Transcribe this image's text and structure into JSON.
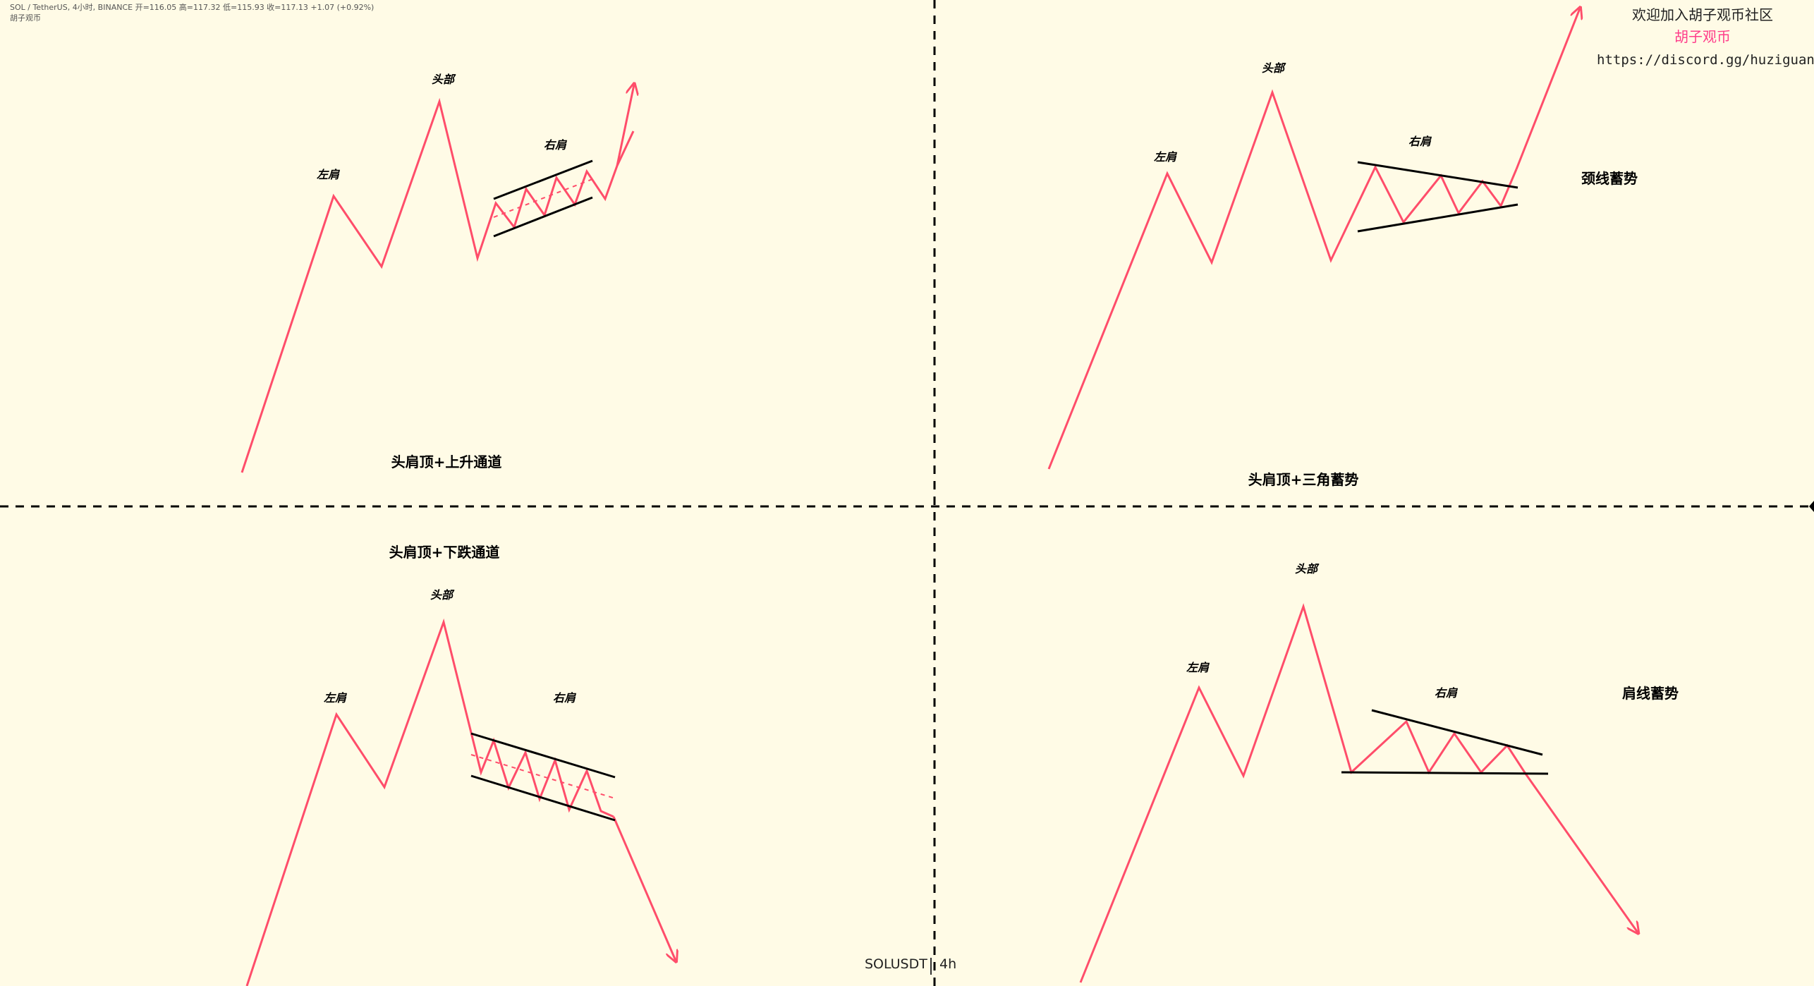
{
  "header": {
    "symbol_line": "SOL / TetherUS, 4小时, BINANCE  开=116.05  高=117.32  低=115.93  收=117.13  +1.07 (+0.92%)",
    "watermark": "胡子观币"
  },
  "promo": {
    "line1": "欢迎加入胡子观币社区",
    "line2": "胡子观币",
    "line3": "https://discord.gg/huziguanbi",
    "accent_color": "#ff3d8a"
  },
  "colors": {
    "background": "#fffbe6",
    "price_line": "#ff4d6a",
    "pattern_line": "#000000",
    "divider": "#000000"
  },
  "panels": {
    "tl": {
      "left": "左肩",
      "head": "头部",
      "right": "右肩",
      "caption": "头肩顶+上升通道"
    },
    "tr": {
      "left": "左肩",
      "head": "头部",
      "right": "右肩",
      "caption": "头肩顶+三角蓄势",
      "side_note": "颈线蓄势"
    },
    "bl": {
      "left": "左肩",
      "head": "头部",
      "right": "右肩",
      "caption": "头肩顶+下跌通道"
    },
    "br": {
      "left": "左肩",
      "head": "头部",
      "right": "右肩",
      "side_note": "肩线蓄势"
    }
  },
  "footer": {
    "symbol": "SOLUSDT",
    "interval": "4h"
  }
}
